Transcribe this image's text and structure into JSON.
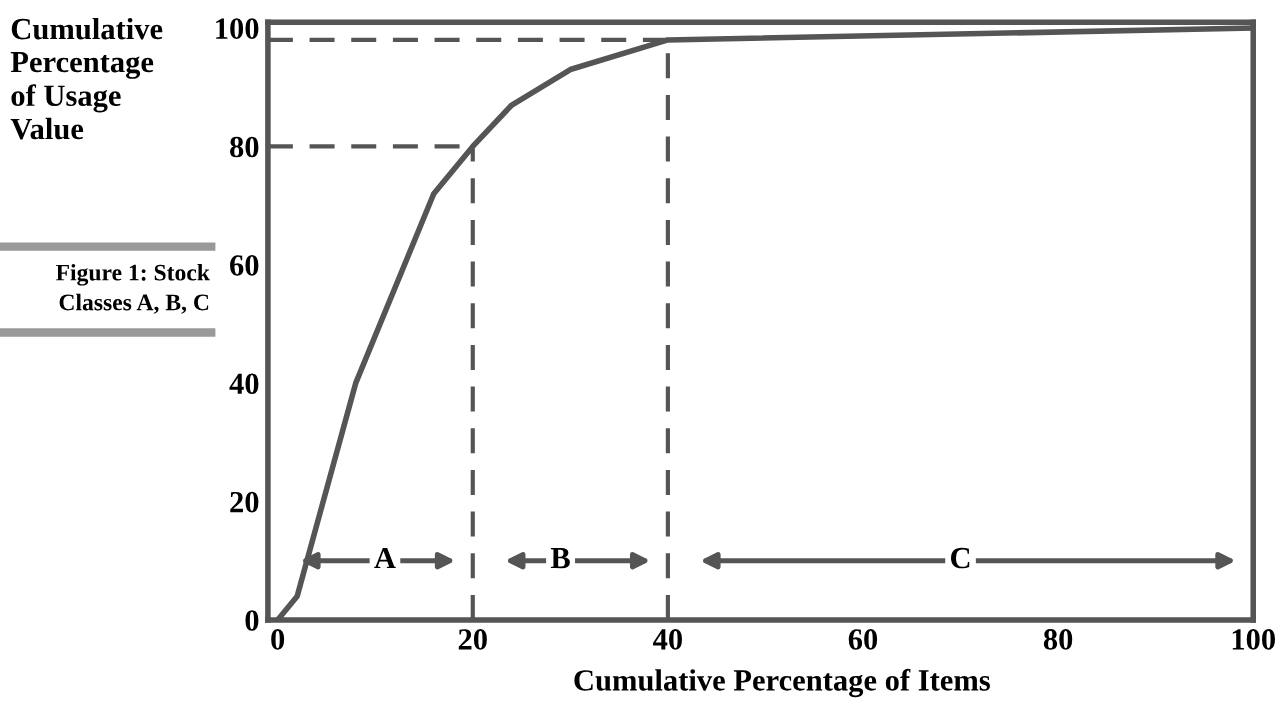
{
  "chart_data": {
    "type": "line",
    "title": "Figure 1: Stock\nClasses A, B, C",
    "xlabel": "Cumulative Percentage of Items",
    "ylabel": "Cumulative\nPercentage\nof Usage\nValue",
    "x": [
      0,
      2,
      8,
      16,
      20,
      24,
      30,
      40,
      100
    ],
    "series": [
      {
        "color": "#555555",
        "values": [
          0,
          4,
          40,
          72,
          80,
          87,
          93,
          98,
          100
        ]
      }
    ],
    "xlim": [
      -1,
      100
    ],
    "ylim": [
      0,
      101
    ],
    "xticks": [
      0,
      20,
      40,
      60,
      80,
      100
    ],
    "yticks": [
      0,
      20,
      40,
      60,
      80,
      100
    ],
    "ref_lines": [
      {
        "axis": "x",
        "value": 20,
        "color": "#555555",
        "line_style": "dashed"
      },
      {
        "axis": "x",
        "value": 40,
        "color": "#555555",
        "line_style": "dashed"
      },
      {
        "axis": "y",
        "value": 80,
        "color": "#555555",
        "line_style": "dashed"
      },
      {
        "axis": "y",
        "value": 98,
        "color": "#555555",
        "line_style": "dashed"
      }
    ],
    "annotations": [
      {
        "text": "A",
        "x": 11,
        "y": 10
      },
      {
        "text": "B",
        "x": 29,
        "y": 10
      },
      {
        "text": "C",
        "x": 70,
        "y": 10
      }
    ],
    "grid": false,
    "line_style": "solid",
    "marker": "none"
  }
}
